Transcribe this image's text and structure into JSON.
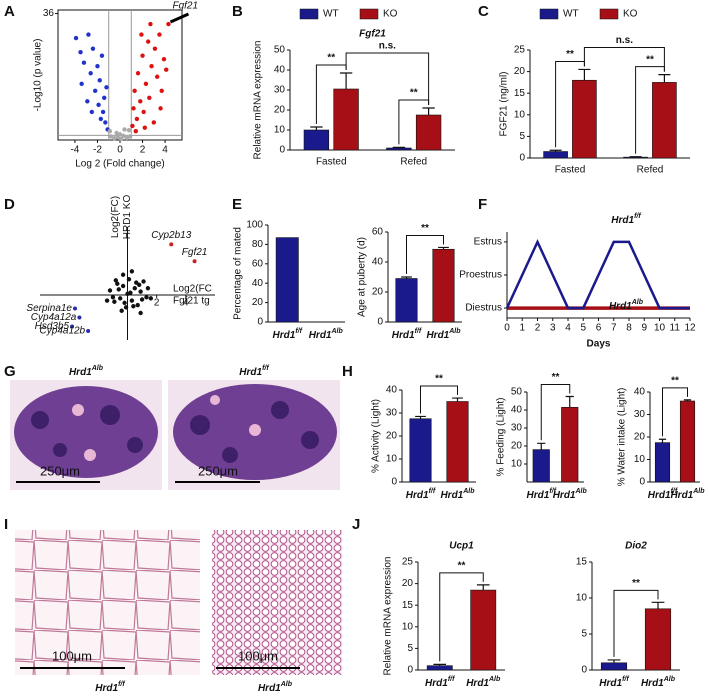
{
  "panel_labels": [
    "A",
    "B",
    "C",
    "D",
    "E",
    "F",
    "G",
    "H",
    "I",
    "J"
  ],
  "histology": {
    "G": [
      {
        "title": "Hrd1",
        "title_sup": "Alb",
        "scale": "250μm"
      },
      {
        "title": "Hrd1",
        "title_sup": "f/f",
        "scale": "250μm"
      }
    ],
    "I": [
      {
        "caption": "Hrd1",
        "caption_sup": "f/f",
        "scale": "100μm"
      },
      {
        "caption": "Hrd1",
        "caption_sup": "Alb",
        "scale": "100μm"
      }
    ]
  },
  "chart_data": [
    {
      "type": "scatter",
      "xlabel": "Log 2 (Fold change)",
      "ylabel": "-Log10 (p value)",
      "xlim": [
        -5.5,
        5.5
      ],
      "ylim": [
        0,
        37
      ],
      "xticks": [
        -4,
        -2,
        0,
        2,
        4
      ],
      "yticks": [
        36
      ],
      "vlines": [
        -1,
        1
      ],
      "hline": 1.3,
      "series": [
        {
          "color": "#2233cc",
          "x": [
            -3.9,
            -3.5,
            -3.2,
            -2.8,
            -2.6,
            -2.4,
            -2.2,
            -2.0,
            -1.9,
            -1.8,
            -1.6,
            -1.5,
            -1.4,
            -1.3,
            -1.2,
            -1.1,
            -2.9,
            -3.4,
            -1.7,
            -2.5
          ],
          "values": [
            29,
            25,
            22,
            30,
            19,
            26,
            14,
            21,
            10,
            17,
            24,
            8,
            12,
            5,
            15,
            3,
            11,
            16,
            6,
            8
          ]
        },
        {
          "color": "#dd1111",
          "x": [
            1.1,
            1.2,
            1.3,
            1.5,
            1.6,
            1.8,
            2.0,
            2.1,
            2.3,
            2.5,
            2.6,
            2.8,
            3.0,
            3.1,
            3.3,
            3.5,
            3.7,
            3.9,
            4.1,
            4.3,
            1.4,
            2.2,
            1.9,
            2.7,
            3.6
          ],
          "values": [
            4,
            9,
            14,
            6,
            19,
            11,
            24,
            8,
            16,
            28,
            12,
            21,
            5,
            26,
            18,
            30,
            14,
            23,
            20,
            33,
            2.5,
            3.5,
            30,
            33,
            9
          ]
        },
        {
          "color": "#aaaaaa",
          "x": [
            -0.8,
            -0.5,
            -0.2,
            0.1,
            0.3,
            0.6,
            0.9,
            -0.9,
            0.8,
            -0.3,
            0.4,
            0
          ],
          "values": [
            1,
            0.5,
            0.8,
            0.3,
            1.2,
            0.6,
            1,
            2.5,
            2.8,
            2,
            3,
            1.6
          ]
        }
      ],
      "annotations": [
        {
          "text": "Fgf21",
          "x": 4.3,
          "y": 33
        }
      ]
    },
    {
      "type": "bar",
      "title": "Fgf21",
      "ylabel": "Relative mRNA expression",
      "categories": [
        "Fasted",
        "Refed"
      ],
      "series": [
        {
          "name": "WT",
          "color": "#1a1a8c",
          "values": [
            10,
            1
          ],
          "errors": [
            1.5,
            0.3
          ]
        },
        {
          "name": "KO",
          "color": "#a50f15",
          "values": [
            30.5,
            17.5
          ],
          "errors": [
            8,
            3.5
          ]
        }
      ],
      "ylim": [
        0,
        50
      ],
      "yticks": [
        0,
        10,
        20,
        30,
        40,
        50
      ],
      "annotations": [
        "**",
        "n.s.",
        "**"
      ]
    },
    {
      "type": "bar",
      "ylabel": "FGF21 (ng/ml)",
      "categories": [
        "Fasted",
        "Refed"
      ],
      "series": [
        {
          "name": "WT",
          "color": "#1a1a8c",
          "values": [
            1.5,
            0.2
          ],
          "errors": [
            0.3,
            0.1
          ]
        },
        {
          "name": "KO",
          "color": "#a50f15",
          "values": [
            18,
            17.5
          ],
          "errors": [
            2.5,
            1.8
          ]
        }
      ],
      "ylim": [
        0,
        25
      ],
      "yticks": [
        0,
        5,
        10,
        15,
        20,
        25
      ],
      "annotations": [
        "**",
        "n.s.",
        "**"
      ]
    },
    {
      "type": "scatter",
      "cross": true,
      "xlabel": [
        "Log2(FC",
        "Fgf21 tg"
      ],
      "ylabel": [
        "Log2(FC)",
        "HRD1 KO"
      ],
      "xlim": [
        -6,
        6
      ],
      "ylim": [
        -4,
        8
      ],
      "xticks": [
        2,
        4
      ],
      "series": [
        {
          "color": "#111111",
          "x": [
            -1.2,
            -0.9,
            -0.7,
            -0.5,
            -0.3,
            -0.1,
            0.1,
            0.3,
            0.5,
            0.7,
            0.9,
            1.1,
            1.3,
            -1.0,
            -0.6,
            -0.2,
            0.2,
            0.6,
            1.0,
            -0.8,
            -0.4,
            0,
            0.4,
            0.8,
            1.4,
            -1.4,
            1.6,
            0.3,
            -0.3,
            0.9
          ],
          "values": [
            0.4,
            -0.6,
            1.0,
            -0.3,
            0.8,
            -1.1,
            1.4,
            -0.5,
            0.6,
            -0.9,
            0.3,
            1.2,
            -0.2,
            -0.2,
            0.5,
            -0.7,
            0.2,
            1.1,
            -0.4,
            1.3,
            -1.4,
            0.1,
            -1.0,
            0.9,
            0.6,
            -0.5,
            -0.3,
            2.1,
            1.8,
            -1.6
          ]
        }
      ],
      "point_labels": [
        {
          "text": "Cyp2b13",
          "x": 3,
          "y": 4.5,
          "color": "#c82020"
        },
        {
          "text": "Fgf21",
          "x": 4.6,
          "y": 3,
          "color": "#c82020"
        },
        {
          "text": "Serpina1e",
          "x": -3.6,
          "y": -1.2,
          "color": "#2a2ab0"
        },
        {
          "text": "Cyp4a12a",
          "x": -3.3,
          "y": -2,
          "color": "#2a2ab0"
        },
        {
          "text": "Hsd3b5",
          "x": -3.8,
          "y": -2.8,
          "color": "#2a2ab0"
        },
        {
          "text": "Cyp4a12b",
          "x": -2.7,
          "y": -3.2,
          "color": "#2a2ab0"
        }
      ]
    },
    {
      "type": "bar",
      "ylabel": "Percentage of mated",
      "categories": [
        "Hrd1",
        "Hrd1"
      ],
      "category_sup": [
        "f/f",
        "Alb"
      ],
      "values": [
        87,
        0
      ],
      "colors": [
        "#1a1a8c",
        "#a50f15"
      ],
      "ylim": [
        0,
        100
      ],
      "yticks": [
        0,
        20,
        40,
        60,
        80,
        100
      ]
    },
    {
      "type": "bar",
      "ylabel": "Age at puberty (d)",
      "categories": [
        "Hrd1",
        "Hrd1"
      ],
      "category_sup": [
        "f/f",
        "Alb"
      ],
      "values": [
        29,
        48.5
      ],
      "errors": [
        1,
        1.2
      ],
      "colors": [
        "#1a1a8c",
        "#a50f15"
      ],
      "ylim": [
        0,
        60
      ],
      "yticks": [
        0,
        20,
        40,
        60
      ],
      "annotations": [
        "**"
      ]
    },
    {
      "type": "line",
      "xlabel": "Days",
      "x": [
        0,
        1,
        2,
        3,
        4,
        5,
        6,
        7,
        8,
        9,
        10,
        11,
        12
      ],
      "xlim": [
        0,
        12
      ],
      "xticks": [
        0,
        1,
        2,
        3,
        4,
        5,
        6,
        7,
        8,
        9,
        10,
        11,
        12
      ],
      "ylim": [
        -0.3,
        2.3
      ],
      "yticks": [
        {
          "value": 0,
          "label": "Diestrus"
        },
        {
          "value": 1,
          "label": "Proestrus"
        },
        {
          "value": 2,
          "label": "Estrus"
        }
      ],
      "series": [
        {
          "name": "Hrd1",
          "name_sup": "f/f",
          "color": "#1a1a8c",
          "values": [
            0,
            1,
            2,
            1,
            0,
            0,
            1,
            2,
            2,
            1,
            0,
            0,
            0
          ]
        },
        {
          "name": "Hrd1",
          "name_sup": "Alb",
          "color": "#a50f15",
          "values": [
            0,
            0,
            0,
            0,
            0,
            0,
            0,
            0,
            0,
            0,
            0,
            0,
            0
          ]
        }
      ]
    },
    {
      "type": "bar",
      "ylabel": "% Activity (Light)",
      "categories": [
        "Hrd1",
        "Hrd1"
      ],
      "category_sup": [
        "f/f",
        "Alb"
      ],
      "values": [
        27.5,
        35
      ],
      "errors": [
        1,
        1.5
      ],
      "colors": [
        "#1a1a8c",
        "#a50f15"
      ],
      "ylim": [
        0,
        40
      ],
      "yticks": [
        0,
        10,
        20,
        30,
        40
      ],
      "annotations": [
        "**"
      ]
    },
    {
      "type": "bar",
      "ylabel": "% Feeding (Light)",
      "categories": [
        "Hrd1",
        "Hrd1"
      ],
      "category_sup": [
        "f/f",
        "Alb"
      ],
      "values": [
        18,
        41.5
      ],
      "errors": [
        3.5,
        6
      ],
      "colors": [
        "#1a1a8c",
        "#a50f15"
      ],
      "ylim": [
        0,
        50
      ],
      "yticks": [
        10,
        20,
        30,
        40,
        50
      ],
      "annotations": [
        "**"
      ]
    },
    {
      "type": "bar",
      "ylabel": "% Water intake (Light)",
      "categories": [
        "Hrd1",
        "Hrd1"
      ],
      "category_sup": [
        "f/f",
        "Alb"
      ],
      "values": [
        17.5,
        36
      ],
      "errors": [
        1.5,
        0.5
      ],
      "colors": [
        "#1a1a8c",
        "#a50f15"
      ],
      "ylim": [
        0,
        40
      ],
      "yticks": [
        0,
        10,
        20,
        30,
        40
      ],
      "annotations": [
        "**"
      ]
    },
    {
      "type": "bar",
      "title": "Ucp1",
      "ylabel": "Relative mRNA expression",
      "categories": [
        "Hrd1",
        "Hrd1"
      ],
      "category_sup": [
        "f/f",
        "Alb"
      ],
      "values": [
        1,
        18.5
      ],
      "errors": [
        0.3,
        1.2
      ],
      "colors": [
        "#1a1a8c",
        "#a50f15"
      ],
      "ylim": [
        0,
        25
      ],
      "yticks": [
        0,
        5,
        10,
        15,
        20,
        25
      ],
      "annotations": [
        "**"
      ]
    },
    {
      "type": "bar",
      "title": "Dio2",
      "categories": [
        "Hrd1",
        "Hrd1"
      ],
      "category_sup": [
        "f/f",
        "Alb"
      ],
      "values": [
        1,
        8.5
      ],
      "errors": [
        0.4,
        0.9
      ],
      "colors": [
        "#1a1a8c",
        "#a50f15"
      ],
      "ylim": [
        0,
        15
      ],
      "yticks": [
        0,
        5,
        10,
        15
      ],
      "annotations": [
        "**"
      ]
    }
  ]
}
